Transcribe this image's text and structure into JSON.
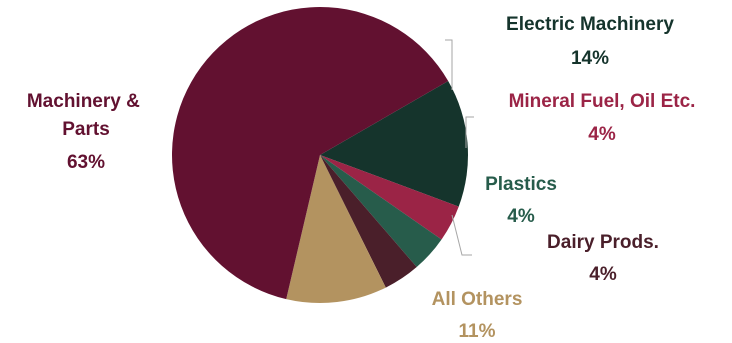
{
  "chart_data": {
    "type": "pie",
    "slices": [
      {
        "label": "Electric Machinery",
        "value": 14,
        "value_label": "14%",
        "color": "#15342c"
      },
      {
        "label": "Mineral Fuel, Oil Etc.",
        "value": 4,
        "value_label": "4%",
        "color": "#9b2446"
      },
      {
        "label": "Plastics",
        "value": 4,
        "value_label": "4%",
        "color": "#275c4b"
      },
      {
        "label": "Dairy Prods.",
        "value": 4,
        "value_label": "4%",
        "color": "#4a1f2a"
      },
      {
        "label": "All Others",
        "value": 11,
        "value_label": "11%",
        "color": "#b39360"
      },
      {
        "label": "Machinery & Parts",
        "value": 63,
        "value_label": "63%",
        "color": "#621130"
      }
    ],
    "label_colors": {
      "Electric Machinery": "#15342c",
      "Mineral Fuel, Oil Etc.": "#9b2446",
      "Plastics": "#275c4b",
      "Dairy Prods.": "#4a1f2a",
      "All Others": "#b39360",
      "Machinery & Parts": "#621130"
    },
    "title": "",
    "legend": "none"
  }
}
